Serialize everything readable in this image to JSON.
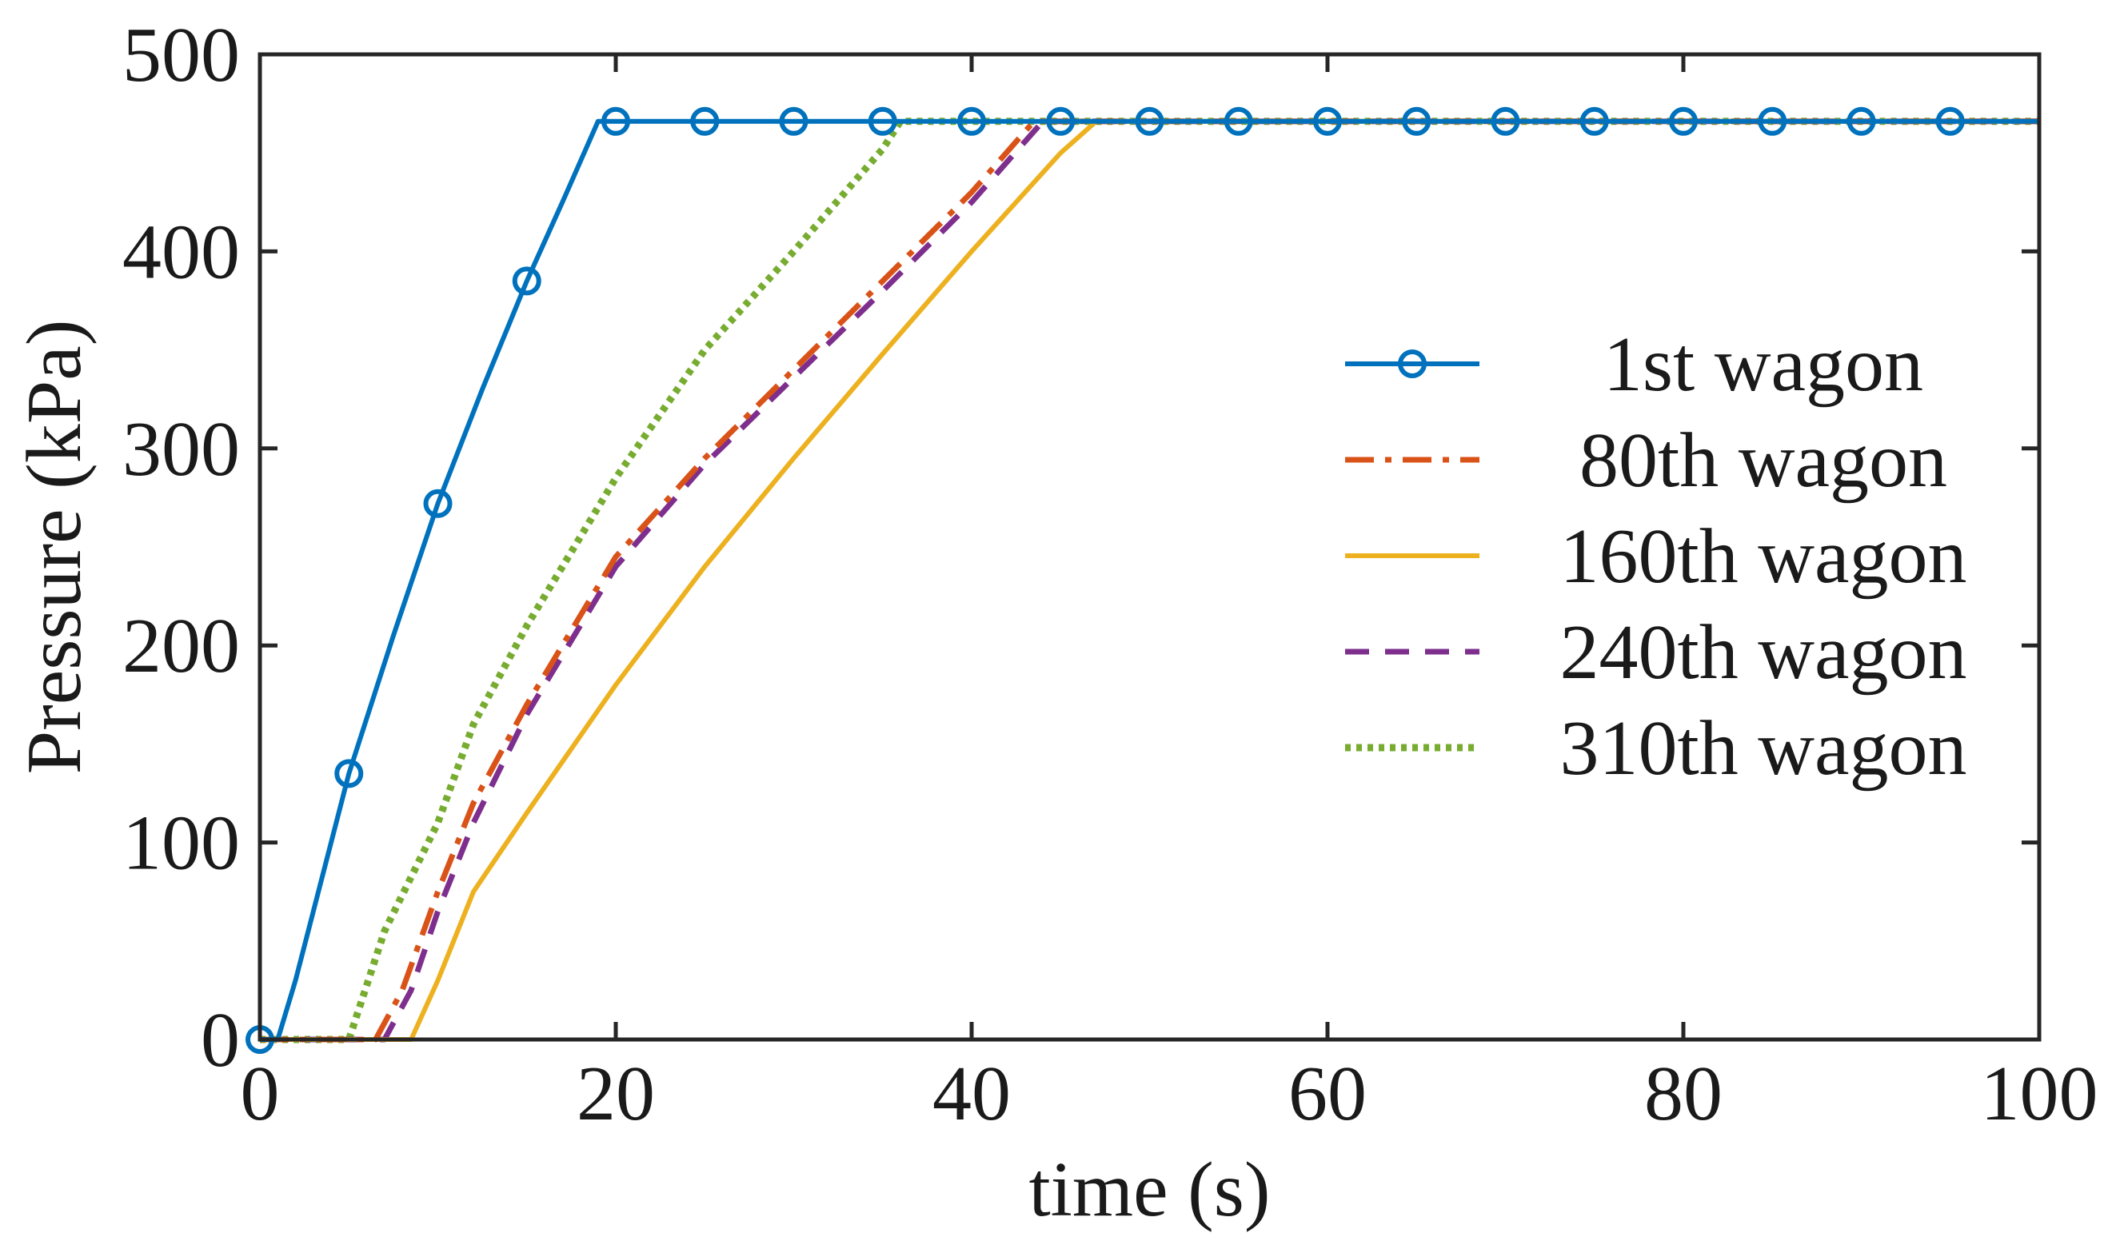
{
  "chart_data": {
    "type": "line",
    "title": "",
    "xlabel": "time (s)",
    "ylabel": "Pressure (kPa)",
    "xlim": [
      0,
      100
    ],
    "ylim": [
      0,
      500
    ],
    "xticks": [
      0,
      20,
      40,
      60,
      80,
      100
    ],
    "yticks": [
      0,
      100,
      200,
      300,
      400,
      500
    ],
    "legend_position": "center-right",
    "series": [
      {
        "name": "1st wagon",
        "color": "#0072BD",
        "style": "solid-circle",
        "x": [
          0,
          1,
          2,
          3,
          5,
          7.5,
          10,
          12.5,
          15,
          17,
          19,
          100
        ],
        "y": [
          0,
          0,
          30,
          65,
          135,
          205,
          272,
          330,
          385,
          425,
          466,
          466
        ],
        "markers_x": [
          0,
          5,
          10,
          15,
          20,
          25,
          30,
          35,
          40,
          45,
          50,
          55,
          60,
          65,
          70,
          75,
          80,
          85,
          90,
          95
        ],
        "markers_y": [
          0,
          135,
          272,
          385,
          466,
          466,
          466,
          466,
          466,
          466,
          466,
          466,
          466,
          466,
          466,
          466,
          466,
          466,
          466,
          466
        ]
      },
      {
        "name": "80th wagon",
        "color": "#D95319",
        "style": "dashdot",
        "x": [
          0,
          6.5,
          8,
          10,
          12,
          15,
          20,
          25,
          30,
          35,
          40,
          43.5,
          100
        ],
        "y": [
          0,
          0,
          25,
          75,
          120,
          170,
          245,
          295,
          340,
          385,
          430,
          466,
          466
        ]
      },
      {
        "name": "160th wagon",
        "color": "#EDB120",
        "style": "solid",
        "x": [
          0,
          8.5,
          10,
          12,
          15,
          20,
          25,
          30,
          35,
          40,
          45,
          47,
          100
        ],
        "y": [
          0,
          0,
          30,
          75,
          115,
          180,
          240,
          295,
          348,
          400,
          450,
          466,
          466
        ]
      },
      {
        "name": "240th wagon",
        "color": "#7E2F8E",
        "style": "dashed",
        "x": [
          0,
          7,
          8.5,
          10,
          12,
          15,
          20,
          25,
          30,
          35,
          40,
          44,
          100
        ],
        "y": [
          0,
          0,
          25,
          65,
          110,
          165,
          240,
          292,
          336,
          380,
          425,
          466,
          466
        ]
      },
      {
        "name": "310th wagon",
        "color": "#77AC30",
        "style": "dotted",
        "x": [
          0,
          5,
          7,
          10,
          12,
          15,
          20,
          25,
          30,
          35,
          36,
          100
        ],
        "y": [
          0,
          0,
          55,
          110,
          160,
          210,
          285,
          350,
          400,
          452,
          466,
          466
        ]
      }
    ]
  }
}
